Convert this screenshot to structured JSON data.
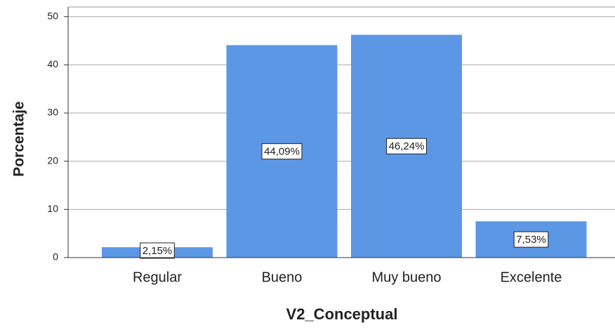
{
  "chart_data": {
    "type": "bar",
    "x_label": "V2_Conceptual",
    "y_label": "Porcentaje",
    "categories": [
      "Regular",
      "Bueno",
      "Muy bueno",
      "Excelente"
    ],
    "values": [
      2.15,
      44.09,
      46.24,
      7.53
    ],
    "value_labels": [
      "2,15%",
      "44,09%",
      "46,24%",
      "7,53%"
    ],
    "color": "#5b97e5",
    "ylim": [
      0,
      52
    ],
    "yticks": [
      0,
      10,
      20,
      30,
      40,
      50
    ],
    "grid": true
  }
}
